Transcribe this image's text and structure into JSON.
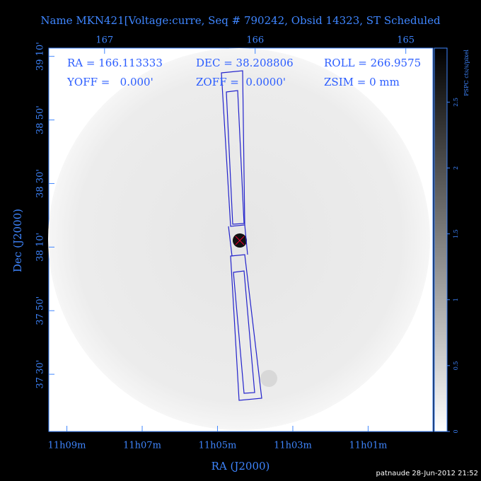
{
  "chart_data": {
    "type": "image",
    "title": "Name MKN421[Voltage:curre, Seq # 790242, Obsid 14323, ST Scheduled",
    "info": [
      "RA = 166.113333",
      "DEC = 38.208806",
      "ROLL = 266.9575",
      "YOFF =   0.000'",
      "ZOFF =  0.0000'",
      "ZSIM = 0 mm"
    ],
    "x_label": "RA (J2000)",
    "y_label": "Dec (J2000)",
    "xlim": [
      167.37,
      164.82
    ],
    "xticks": [
      {
        "value": 167.25,
        "label": "11h09m"
      },
      {
        "value": 166.75,
        "label": "11h07m"
      },
      {
        "value": 166.25,
        "label": "11h05m"
      },
      {
        "value": 165.75,
        "label": "11h03m"
      },
      {
        "value": 165.25,
        "label": "11h01m"
      }
    ],
    "x2ticks": [
      167,
      166,
      165
    ],
    "ylim": [
      37.2,
      39.21
    ],
    "yticks": [
      {
        "value": 39.1667,
        "label": "39 10'"
      },
      {
        "value": 38.8333,
        "label": "38 50'"
      },
      {
        "value": 38.5,
        "label": "38 30'"
      },
      {
        "value": 38.1667,
        "label": "38 10'"
      },
      {
        "value": 37.8333,
        "label": "37 50'"
      },
      {
        "value": 37.5,
        "label": "37 30'"
      }
    ],
    "colorbar_label": "PSPC cts/s/pixel",
    "clim": [
      0,
      2.91
    ],
    "cticks": [
      0,
      0.5,
      1,
      1.5,
      2,
      2.5
    ],
    "footer": "patnaude 28-Jun-2012 21:52"
  }
}
